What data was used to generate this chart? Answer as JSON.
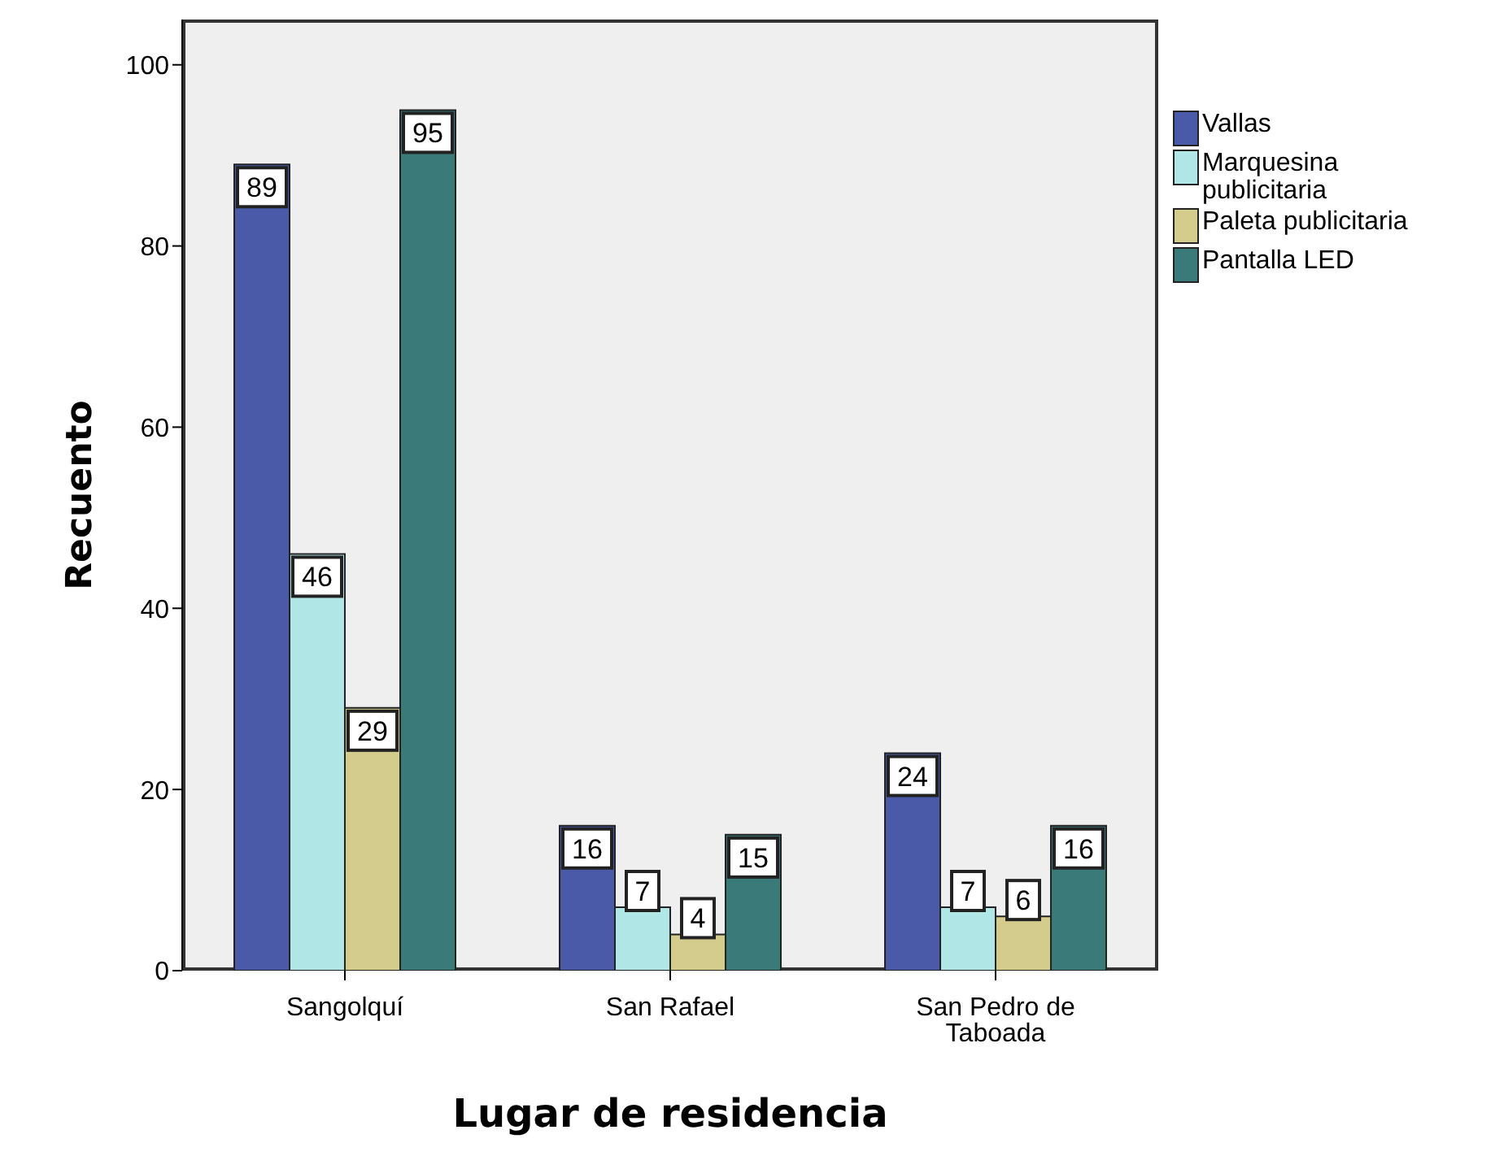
{
  "chart_data": {
    "type": "bar",
    "xlabel": "Lugar de residencia",
    "ylabel": "Recuento",
    "categories": [
      "Sangolquí",
      "San Rafael",
      "San Pedro de Taboada"
    ],
    "series": [
      {
        "name": "Vallas",
        "color": "#4a5aa8",
        "values": [
          89,
          16,
          24
        ]
      },
      {
        "name": "Marquesina publicitaria",
        "color": "#b0e6e6",
        "values": [
          46,
          7,
          7
        ]
      },
      {
        "name": "Paleta publicitaria",
        "color": "#d4cc8c",
        "values": [
          29,
          4,
          6
        ]
      },
      {
        "name": "Pantalla LED",
        "color": "#3a7a78",
        "values": [
          95,
          15,
          16
        ]
      }
    ],
    "ylim": [
      0,
      105
    ],
    "yticks": [
      0,
      20,
      40,
      60,
      80,
      100
    ],
    "data_labels": true,
    "legend": "top right"
  }
}
